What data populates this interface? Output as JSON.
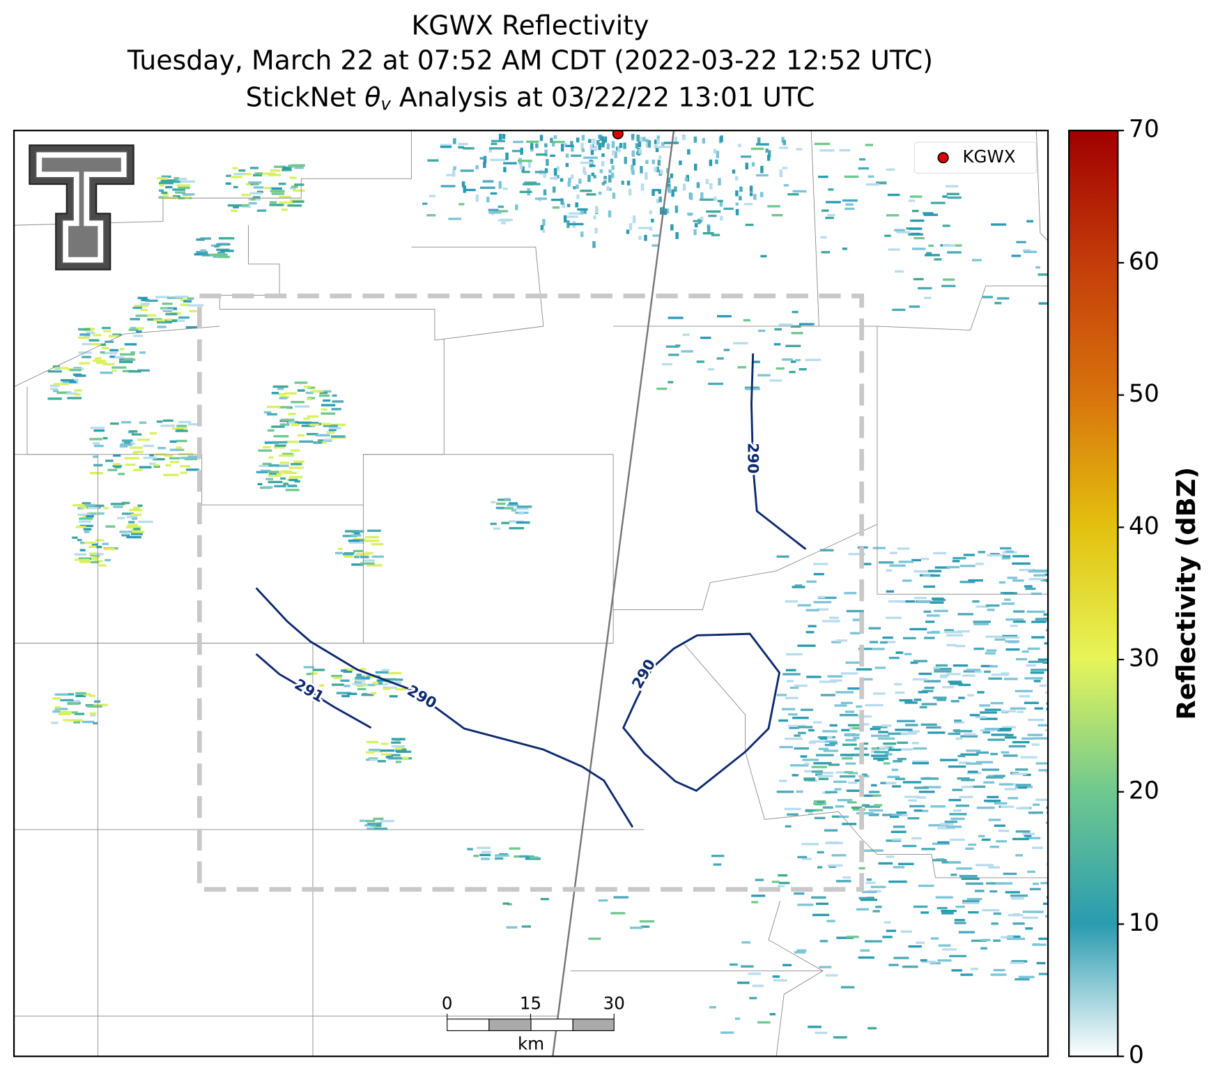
{
  "title": {
    "line1": "KGWX Reflectivity",
    "line2": "Tuesday, March 22 at 07:52 AM CDT (2022-03-22 12:52 UTC)",
    "line3": {
      "prefix": "StickNet ",
      "symbol": "θ",
      "subscript": "v",
      "suffix": " Analysis at 03/22/22 13:01 UTC"
    }
  },
  "legend": {
    "label": "KGWX",
    "color": "#e00000"
  },
  "contours": [
    291,
    290,
    290,
    290
  ],
  "scale_bar": {
    "ticks": [
      0,
      15,
      30
    ],
    "unit": "km"
  },
  "colorbar": {
    "label": "Reflectivity (dBZ)",
    "lim": [
      0,
      70
    ],
    "ticks": [
      0,
      10,
      20,
      30,
      40,
      50,
      60,
      70
    ],
    "colors": [
      "#ffffff",
      "#2a9bb0",
      "#6fc88f",
      "#e6f55a",
      "#e3c10f",
      "#d8730d",
      "#c43c0a",
      "#a00000"
    ]
  }
}
